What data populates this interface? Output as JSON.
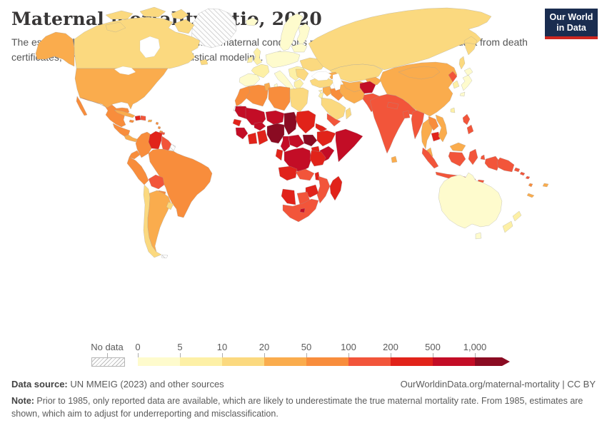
{
  "header": {
    "title": "Maternal mortality ratio, 2020",
    "subtitle": "The estimated number of women who die from maternal conditions per 100,000 live births, based on data from death certificates, large-scale surveys, and statistical modeling.",
    "logo": {
      "line1": "Our World",
      "line2": "in Data",
      "bg_color": "#1a2d50",
      "stripe_color": "#ce261f"
    }
  },
  "legend": {
    "no_data_label": "No data",
    "tick_labels": [
      "0",
      "5",
      "10",
      "20",
      "50",
      "100",
      "200",
      "500",
      "1,000"
    ],
    "bin_colors": [
      "#FEFBCD",
      "#FDF0A6",
      "#FBD97F",
      "#FAAC4D",
      "#F88D3C",
      "#F2553A",
      "#E1231A",
      "#C30D26",
      "#8A0B22"
    ]
  },
  "footer": {
    "source_label": "Data source:",
    "source_text": " UN MMEIG (2023) and other sources",
    "link_text": "OurWorldinData.org/maternal-mortality | CC BY",
    "note_label": "Note:",
    "note_text": " Prior to 1985, only reported data are available, which are likely to underestimate the true maternal mortality rate. From 1985, estimates are shown, which aim to adjust for underreporting and misclassification."
  },
  "chart_data": {
    "type": "heatmap",
    "subtype": "world-choropleth",
    "title": "Maternal mortality ratio, 2020",
    "unit": "maternal deaths per 100,000 live births",
    "legend_position": "bottom-left",
    "scale": {
      "bin_edges": [
        0,
        5,
        10,
        20,
        50,
        100,
        200,
        500,
        1000
      ],
      "bin_labels": [
        "0-5",
        "5-10",
        "10-20",
        "20-50",
        "50-100",
        "100-200",
        "200-500",
        "500-1,000",
        "1,000+"
      ],
      "colors": [
        "#FEFBCD",
        "#FDF0A6",
        "#FBD97F",
        "#FAAC4D",
        "#F88D3C",
        "#F2553A",
        "#E1231A",
        "#C30D26",
        "#8A0B22"
      ],
      "no_data": "hatched"
    },
    "regions": [
      {
        "id": "greenland",
        "name": "Greenland",
        "bin": -1
      },
      {
        "id": "canada",
        "name": "Canada",
        "bin": 2
      },
      {
        "id": "alaska",
        "name": "United States (Alaska)",
        "bin": 3
      },
      {
        "id": "usa",
        "name": "United States",
        "bin": 3
      },
      {
        "id": "mexico",
        "name": "Mexico",
        "bin": 4
      },
      {
        "id": "guatemala-honduras-nicaragua",
        "name": "Central America",
        "bin": 4
      },
      {
        "id": "costa-rica-panama",
        "name": "Costa Rica and Panama",
        "bin": 3
      },
      {
        "id": "cuba",
        "name": "Cuba",
        "bin": 3
      },
      {
        "id": "jamaica",
        "name": "Jamaica",
        "bin": 4
      },
      {
        "id": "haiti",
        "name": "Haiti",
        "bin": 6
      },
      {
        "id": "dominican-republic",
        "name": "Dominican Republic",
        "bin": 5
      },
      {
        "id": "puerto-rico",
        "name": "Puerto Rico",
        "bin": 3
      },
      {
        "id": "lesser-antilles",
        "name": "Lesser Antilles",
        "bin": 4
      },
      {
        "id": "trinidad-tobago",
        "name": "Trinidad and Tobago",
        "bin": 5
      },
      {
        "id": "colombia",
        "name": "Colombia",
        "bin": 4
      },
      {
        "id": "venezuela",
        "name": "Venezuela",
        "bin": 6
      },
      {
        "id": "guyana-suriname",
        "name": "Guyana and Suriname",
        "bin": 5
      },
      {
        "id": "french-guiana",
        "name": "French Guiana",
        "bin": -1
      },
      {
        "id": "ecuador",
        "name": "Ecuador",
        "bin": 4
      },
      {
        "id": "peru",
        "name": "Peru",
        "bin": 4
      },
      {
        "id": "brazil",
        "name": "Brazil",
        "bin": 4
      },
      {
        "id": "bolivia",
        "name": "Bolivia",
        "bin": 5
      },
      {
        "id": "paraguay",
        "name": "Paraguay",
        "bin": 4
      },
      {
        "id": "chile",
        "name": "Chile",
        "bin": 2
      },
      {
        "id": "argentina",
        "name": "Argentina",
        "bin": 3
      },
      {
        "id": "uruguay",
        "name": "Uruguay",
        "bin": 2
      },
      {
        "id": "falkland-islands",
        "name": "Falkland Islands",
        "bin": -1
      },
      {
        "id": "iceland",
        "name": "Iceland",
        "bin": 0
      },
      {
        "id": "british-isles",
        "name": "United Kingdom and Ireland",
        "bin": 1
      },
      {
        "id": "nordics",
        "name": "Norway, Sweden and Finland",
        "bin": 0
      },
      {
        "id": "denmark",
        "name": "Denmark",
        "bin": 0
      },
      {
        "id": "france",
        "name": "France",
        "bin": 1
      },
      {
        "id": "iberia",
        "name": "Spain and Portugal",
        "bin": 0
      },
      {
        "id": "central-europe",
        "name": "Central Europe",
        "bin": 0
      },
      {
        "id": "italy",
        "name": "Italy",
        "bin": 0
      },
      {
        "id": "balkans",
        "name": "Balkans",
        "bin": 1
      },
      {
        "id": "greece",
        "name": "Greece",
        "bin": 1
      },
      {
        "id": "baltics-belarus",
        "name": "Baltics and Belarus",
        "bin": 0
      },
      {
        "id": "ukraine",
        "name": "Ukraine",
        "bin": 2
      },
      {
        "id": "romania-bulgaria",
        "name": "Romania and Bulgaria",
        "bin": 2
      },
      {
        "id": "cyprus",
        "name": "Cyprus",
        "bin": 1
      },
      {
        "id": "russia",
        "name": "Russia",
        "bin": 2
      },
      {
        "id": "kazakhstan",
        "name": "Kazakhstan",
        "bin": 2
      },
      {
        "id": "caucasus",
        "name": "Caucasus",
        "bin": 3
      },
      {
        "id": "turkey",
        "name": "Turkey",
        "bin": 2
      },
      {
        "id": "syria",
        "name": "Syria",
        "bin": 3
      },
      {
        "id": "israel-jordan",
        "name": "Israel and Jordan",
        "bin": 1
      },
      {
        "id": "iraq",
        "name": "Iraq",
        "bin": 4
      },
      {
        "id": "iran",
        "name": "Iran",
        "bin": 3
      },
      {
        "id": "central-asia",
        "name": "Turkmenistan and Uzbekistan",
        "bin": 3
      },
      {
        "id": "kyrgyzstan-tajikistan",
        "name": "Kyrgyzstan and Tajikistan",
        "bin": 3
      },
      {
        "id": "afghanistan",
        "name": "Afghanistan",
        "bin": 7
      },
      {
        "id": "pakistan",
        "name": "Pakistan",
        "bin": 5
      },
      {
        "id": "saudi-arabia",
        "name": "Saudi Arabia",
        "bin": 2
      },
      {
        "id": "yemen",
        "name": "Yemen",
        "bin": 5
      },
      {
        "id": "oman",
        "name": "Oman and UAE",
        "bin": 2
      },
      {
        "id": "india",
        "name": "India",
        "bin": 5
      },
      {
        "id": "nepal",
        "name": "Nepal",
        "bin": 5
      },
      {
        "id": "bangladesh",
        "name": "Bangladesh",
        "bin": 5
      },
      {
        "id": "sri-lanka",
        "name": "Sri Lanka",
        "bin": 3
      },
      {
        "id": "myanmar",
        "name": "Myanmar",
        "bin": 5
      },
      {
        "id": "thailand",
        "name": "Thailand",
        "bin": 3
      },
      {
        "id": "laos",
        "name": "Laos",
        "bin": 4
      },
      {
        "id": "cambodia",
        "name": "Cambodia",
        "bin": 6
      },
      {
        "id": "vietnam",
        "name": "Vietnam",
        "bin": 3
      },
      {
        "id": "malaysia",
        "name": "Malaysia (peninsula)",
        "bin": 3
      },
      {
        "id": "malaysia-borneo",
        "name": "Malaysia (Borneo)",
        "bin": 3
      },
      {
        "id": "china",
        "name": "China",
        "bin": 3
      },
      {
        "id": "mongolia",
        "name": "Mongolia",
        "bin": 3
      },
      {
        "id": "north-korea",
        "name": "North Korea",
        "bin": 5
      },
      {
        "id": "south-korea",
        "name": "South Korea",
        "bin": 1
      },
      {
        "id": "japan",
        "name": "Japan",
        "bin": 0
      },
      {
        "id": "taiwan",
        "name": "Taiwan",
        "bin": 1
      },
      {
        "id": "philippines",
        "name": "Philippines",
        "bin": 5
      },
      {
        "id": "indonesia",
        "name": "Indonesia",
        "bin": 5
      },
      {
        "id": "papua-new-guinea",
        "name": "Papua New Guinea",
        "bin": 5
      },
      {
        "id": "solomon-islands",
        "name": "Solomon Islands",
        "bin": 5
      },
      {
        "id": "vanuatu",
        "name": "Vanuatu",
        "bin": 4
      },
      {
        "id": "fiji",
        "name": "Fiji",
        "bin": 3
      },
      {
        "id": "new-caledonia",
        "name": "New Caledonia",
        "bin": 3
      },
      {
        "id": "australia",
        "name": "Australia",
        "bin": 0
      },
      {
        "id": "new-zealand",
        "name": "New Zealand",
        "bin": 1
      },
      {
        "id": "morocco",
        "name": "Morocco",
        "bin": 4
      },
      {
        "id": "western-sahara",
        "name": "Western Sahara",
        "bin": -1
      },
      {
        "id": "algeria",
        "name": "Algeria",
        "bin": 4
      },
      {
        "id": "tunisia",
        "name": "Tunisia",
        "bin": 3
      },
      {
        "id": "libya",
        "name": "Libya",
        "bin": 4
      },
      {
        "id": "egypt",
        "name": "Egypt",
        "bin": 2
      },
      {
        "id": "mauritania",
        "name": "Mauritania",
        "bin": 7
      },
      {
        "id": "mali",
        "name": "Mali",
        "bin": 7
      },
      {
        "id": "senegal",
        "name": "Senegal and Gambia",
        "bin": 6
      },
      {
        "id": "guinea-region",
        "name": "Guinea, Sierra Leone and Liberia",
        "bin": 7
      },
      {
        "id": "ivory-coast",
        "name": "Cote d'Ivoire",
        "bin": 6
      },
      {
        "id": "ghana-togo-benin",
        "name": "Ghana, Togo and Benin",
        "bin": 6
      },
      {
        "id": "burkina-faso",
        "name": "Burkina Faso",
        "bin": 7
      },
      {
        "id": "niger",
        "name": "Niger",
        "bin": 7
      },
      {
        "id": "nigeria",
        "name": "Nigeria",
        "bin": 8
      },
      {
        "id": "chad",
        "name": "Chad",
        "bin": 8
      },
      {
        "id": "sudan",
        "name": "Sudan",
        "bin": 6
      },
      {
        "id": "eritrea",
        "name": "Eritrea and Djibouti",
        "bin": 6
      },
      {
        "id": "ethiopia",
        "name": "Ethiopia",
        "bin": 6
      },
      {
        "id": "somalia",
        "name": "Somalia",
        "bin": 7
      },
      {
        "id": "south-sudan",
        "name": "South Sudan",
        "bin": 8
      },
      {
        "id": "central-african-republic",
        "name": "Central African Republic",
        "bin": 7
      },
      {
        "id": "cameroon",
        "name": "Cameroon",
        "bin": 7
      },
      {
        "id": "uganda",
        "name": "Uganda",
        "bin": 6
      },
      {
        "id": "kenya",
        "name": "Kenya",
        "bin": 7
      },
      {
        "id": "drc",
        "name": "Democratic Republic of Congo",
        "bin": 7
      },
      {
        "id": "congo-gabon",
        "name": "Congo and Gabon",
        "bin": 6
      },
      {
        "id": "tanzania",
        "name": "Tanzania",
        "bin": 6
      },
      {
        "id": "angola",
        "name": "Angola",
        "bin": 6
      },
      {
        "id": "zambia",
        "name": "Zambia",
        "bin": 5
      },
      {
        "id": "malawi",
        "name": "Malawi",
        "bin": 6
      },
      {
        "id": "mozambique",
        "name": "Mozambique",
        "bin": 5
      },
      {
        "id": "zimbabwe",
        "name": "Zimbabwe",
        "bin": 6
      },
      {
        "id": "botswana",
        "name": "Botswana",
        "bin": 5
      },
      {
        "id": "namibia",
        "name": "Namibia",
        "bin": 6
      },
      {
        "id": "south-africa",
        "name": "South Africa",
        "bin": 5
      },
      {
        "id": "lesotho",
        "name": "Lesotho",
        "bin": 7
      },
      {
        "id": "madagascar",
        "name": "Madagascar",
        "bin": 6
      }
    ]
  }
}
